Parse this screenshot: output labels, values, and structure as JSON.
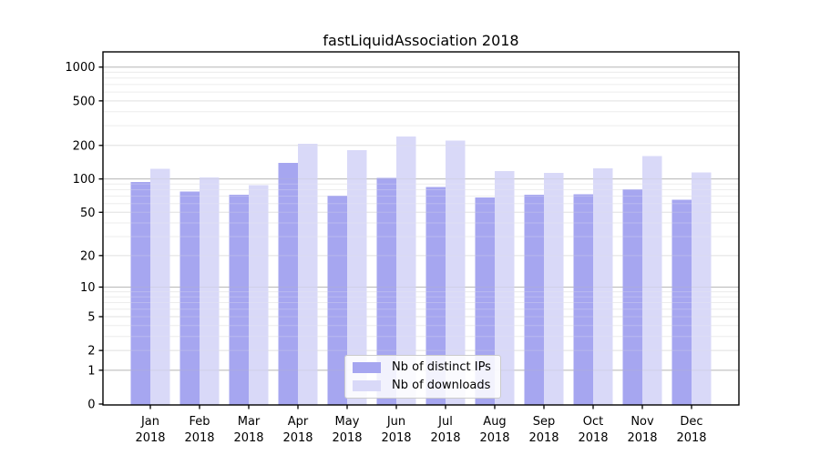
{
  "chart_data": {
    "type": "bar",
    "title": "fastLiquidAssociation 2018",
    "xlabel": "",
    "ylabel": "",
    "categories": [
      "Jan",
      "Feb",
      "Mar",
      "Apr",
      "May",
      "Jun",
      "Jul",
      "Aug",
      "Sep",
      "Oct",
      "Nov",
      "Dec"
    ],
    "x_year_label": "2018",
    "series": [
      {
        "name": "Nb of distinct IPs",
        "color": "#a6a6f0",
        "values": [
          94,
          77,
          72,
          139,
          71,
          102,
          85,
          68,
          72,
          73,
          81,
          65
        ]
      },
      {
        "name": "Nb of downloads",
        "color": "#d9d9f8",
        "values": [
          123,
          103,
          88,
          207,
          181,
          240,
          221,
          118,
          113,
          125,
          161,
          114
        ]
      }
    ],
    "y_scale": "symlog (log10 of value+1)",
    "y_ticks": [
      0,
      1,
      2,
      5,
      10,
      20,
      50,
      100,
      200,
      500,
      1000
    ],
    "ylim": [
      0,
      1380
    ],
    "grid": true,
    "legend_position": "lower center",
    "colors": {
      "axis": "#000000",
      "grid_major": "#b9b9b9",
      "grid_sub": "#e2e2e2",
      "grid_minor": "#eeeeee",
      "background": "#ffffff",
      "legend_border": "#cbcbcb"
    }
  }
}
